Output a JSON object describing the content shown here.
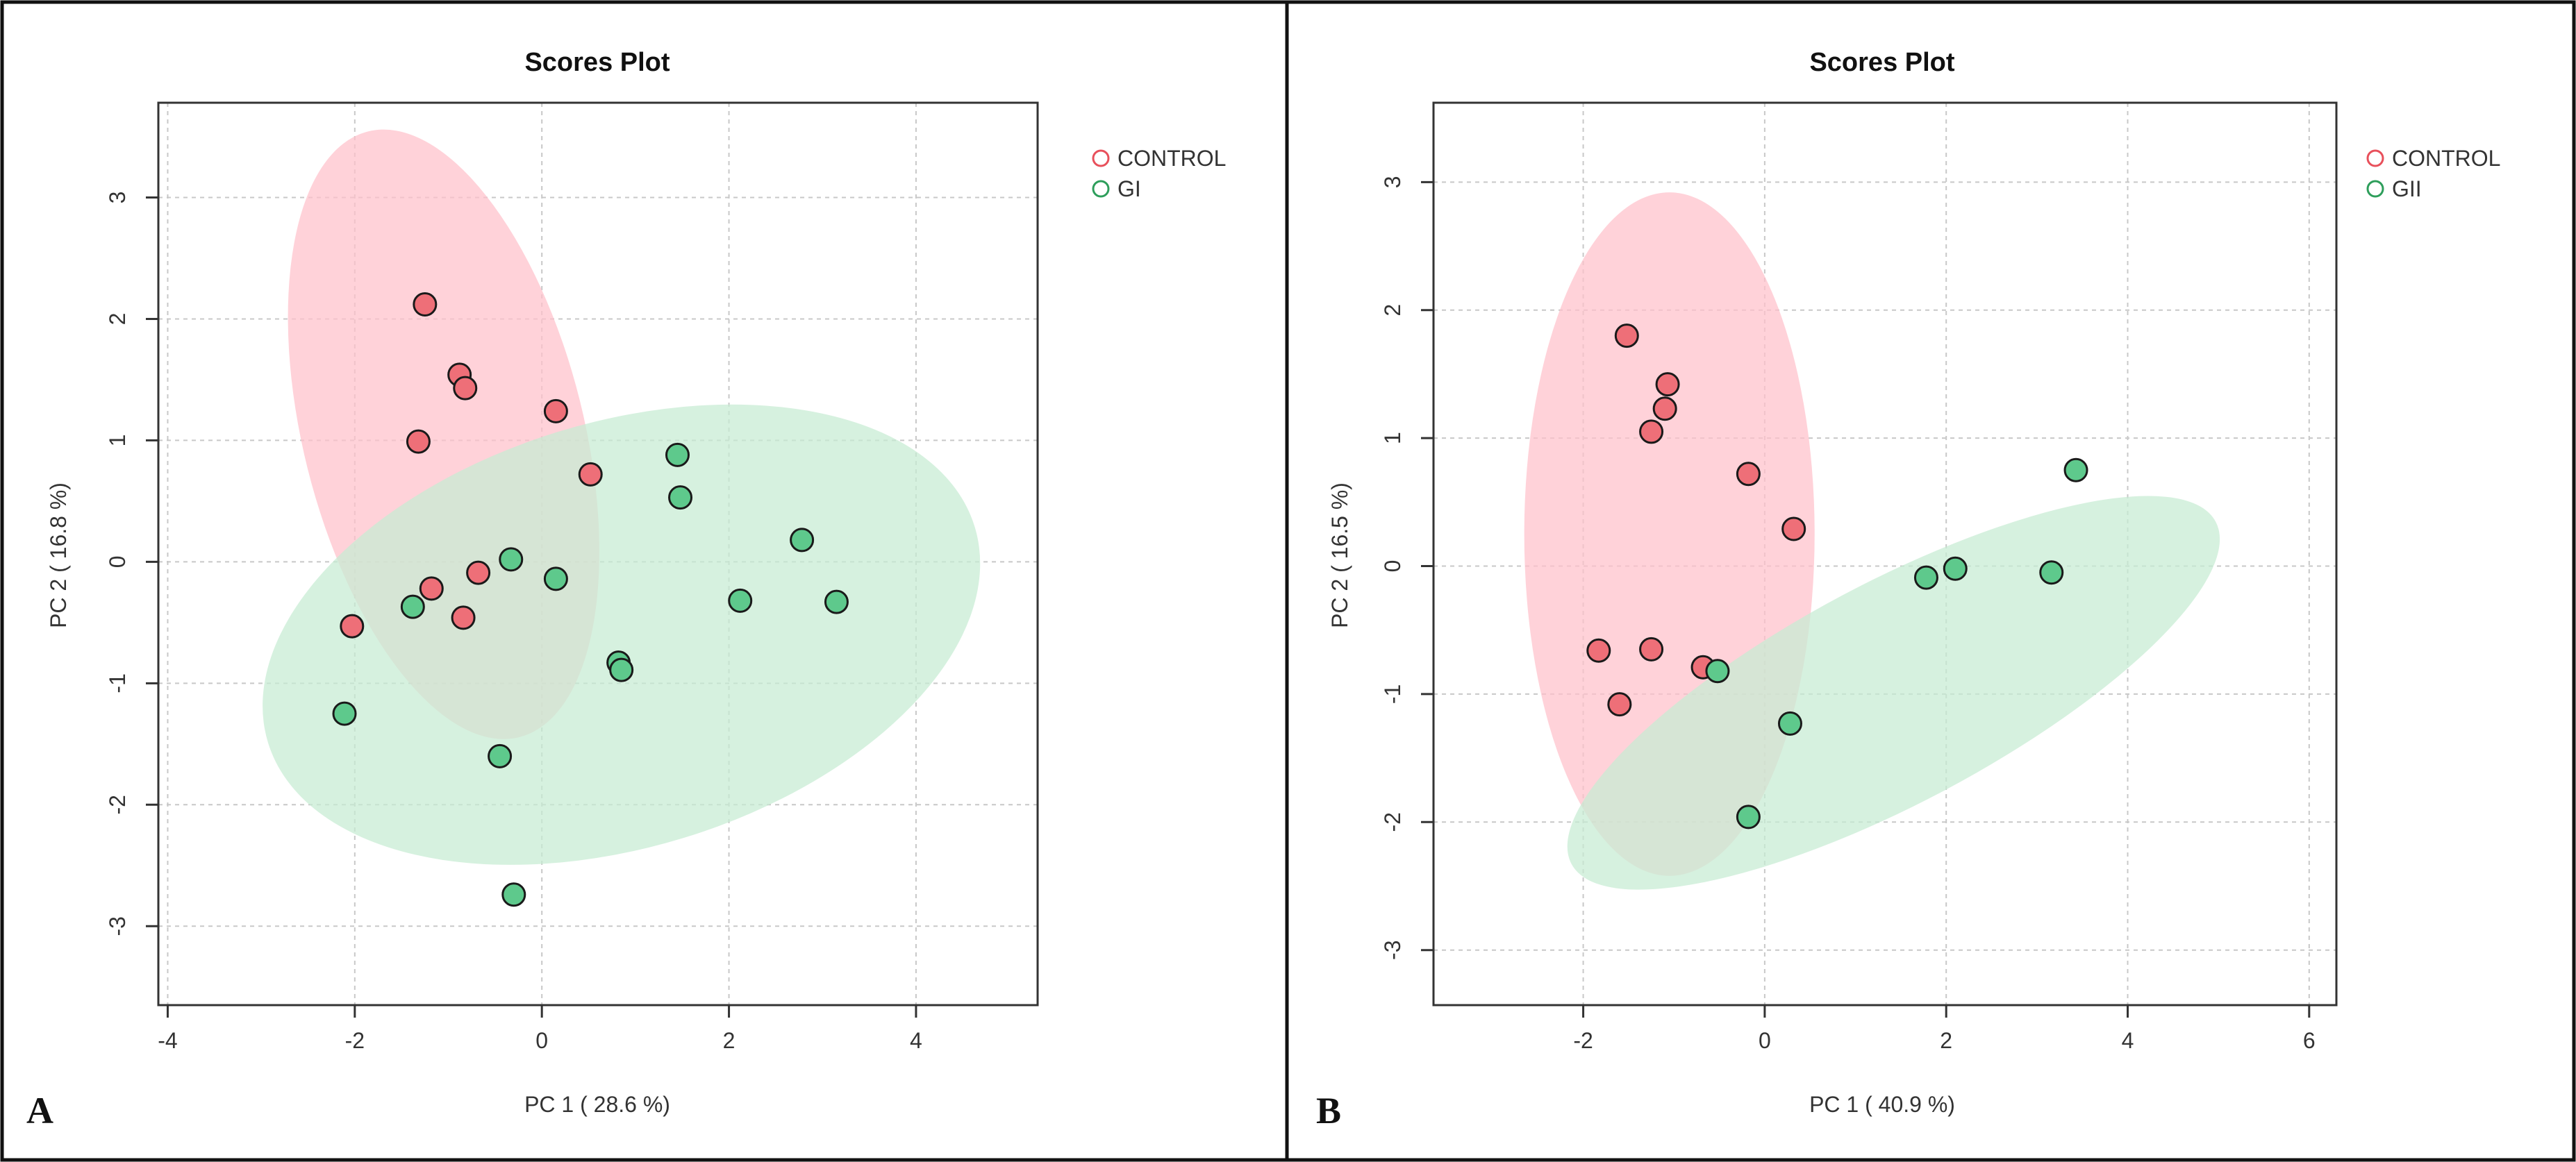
{
  "figure": {
    "panels": [
      {
        "letter": "A"
      },
      {
        "letter": "B"
      }
    ]
  },
  "chart_data": [
    {
      "type": "scatter",
      "title": "Scores Plot",
      "xlabel": "PC 1 ( 28.6 %)",
      "ylabel": "PC 2 ( 16.8 %)",
      "xlim": [
        -4.1,
        5.3
      ],
      "ylim": [
        -3.65,
        3.78
      ],
      "xticks": [
        -4,
        -2,
        0,
        2,
        4
      ],
      "yticks": [
        -3,
        -2,
        -1,
        0,
        1,
        2,
        3
      ],
      "grid": true,
      "legend_position": "top-right",
      "series": [
        {
          "name": "CONTROL",
          "color": "#e8505b",
          "fill": "#ee6f78",
          "ellipse_fill": "#ffc0cb",
          "ellipse": {
            "cx": -1.05,
            "cy": 1.05,
            "rx": 1.5,
            "ry": 2.57,
            "angle_deg": 14
          },
          "points": [
            [
              -1.25,
              2.12
            ],
            [
              -0.88,
              1.54
            ],
            [
              -0.82,
              1.43
            ],
            [
              -1.32,
              0.99
            ],
            [
              0.15,
              1.24
            ],
            [
              0.52,
              0.72
            ],
            [
              -1.18,
              -0.22
            ],
            [
              -0.68,
              -0.09
            ],
            [
              -2.03,
              -0.53
            ],
            [
              -0.84,
              -0.46
            ]
          ]
        },
        {
          "name": "GI",
          "color": "#2e9e5b",
          "fill": "#5ec98c",
          "ellipse_fill": "#c6ebd2",
          "ellipse": {
            "cx": 0.85,
            "cy": -0.6,
            "rx": 3.95,
            "ry": 1.75,
            "angle_deg": 17
          },
          "points": [
            [
              1.45,
              0.88
            ],
            [
              1.48,
              0.53
            ],
            [
              2.78,
              0.18
            ],
            [
              2.12,
              -0.32
            ],
            [
              3.15,
              -0.33
            ],
            [
              -1.38,
              -0.37
            ],
            [
              -0.33,
              0.02
            ],
            [
              0.15,
              -0.14
            ],
            [
              0.82,
              -0.83
            ],
            [
              0.85,
              -0.89
            ],
            [
              -2.11,
              -1.25
            ],
            [
              -0.45,
              -1.6
            ],
            [
              -0.3,
              -2.74
            ]
          ]
        }
      ]
    },
    {
      "type": "scatter",
      "title": "Scores Plot",
      "xlabel": "PC 1 ( 40.9 %)",
      "ylabel": "PC 2 ( 16.5 %)",
      "xlim": [
        -3.65,
        6.3
      ],
      "ylim": [
        -3.43,
        3.62
      ],
      "xticks": [
        -2,
        0,
        2,
        4,
        6
      ],
      "yticks": [
        -3,
        -2,
        -1,
        0,
        1,
        2,
        3
      ],
      "grid": true,
      "legend_position": "top-right",
      "series": [
        {
          "name": "CONTROL",
          "color": "#e8505b",
          "fill": "#ee6f78",
          "ellipse_fill": "#ffc0cb",
          "ellipse": {
            "cx": -1.05,
            "cy": 0.25,
            "rx": 1.6,
            "ry": 2.67,
            "angle_deg": 0
          },
          "points": [
            [
              -1.52,
              1.8
            ],
            [
              -1.07,
              1.42
            ],
            [
              -1.1,
              1.23
            ],
            [
              -1.25,
              1.05
            ],
            [
              -0.18,
              0.72
            ],
            [
              0.32,
              0.29
            ],
            [
              -1.83,
              -0.66
            ],
            [
              -1.25,
              -0.65
            ],
            [
              -1.6,
              -1.08
            ],
            [
              -0.68,
              -0.79
            ]
          ]
        },
        {
          "name": "GII",
          "color": "#2e9e5b",
          "fill": "#5ec98c",
          "ellipse_fill": "#c6ebd2",
          "ellipse": {
            "cx": 1.42,
            "cy": -0.99,
            "rx": 4.02,
            "ry": 0.86,
            "angle_deg": 28
          },
          "points": [
            [
              3.43,
              0.75
            ],
            [
              1.78,
              -0.09
            ],
            [
              2.1,
              -0.02
            ],
            [
              3.16,
              -0.05
            ],
            [
              -0.52,
              -0.82
            ],
            [
              0.28,
              -1.23
            ],
            [
              -0.18,
              -1.96
            ]
          ]
        }
      ]
    }
  ]
}
